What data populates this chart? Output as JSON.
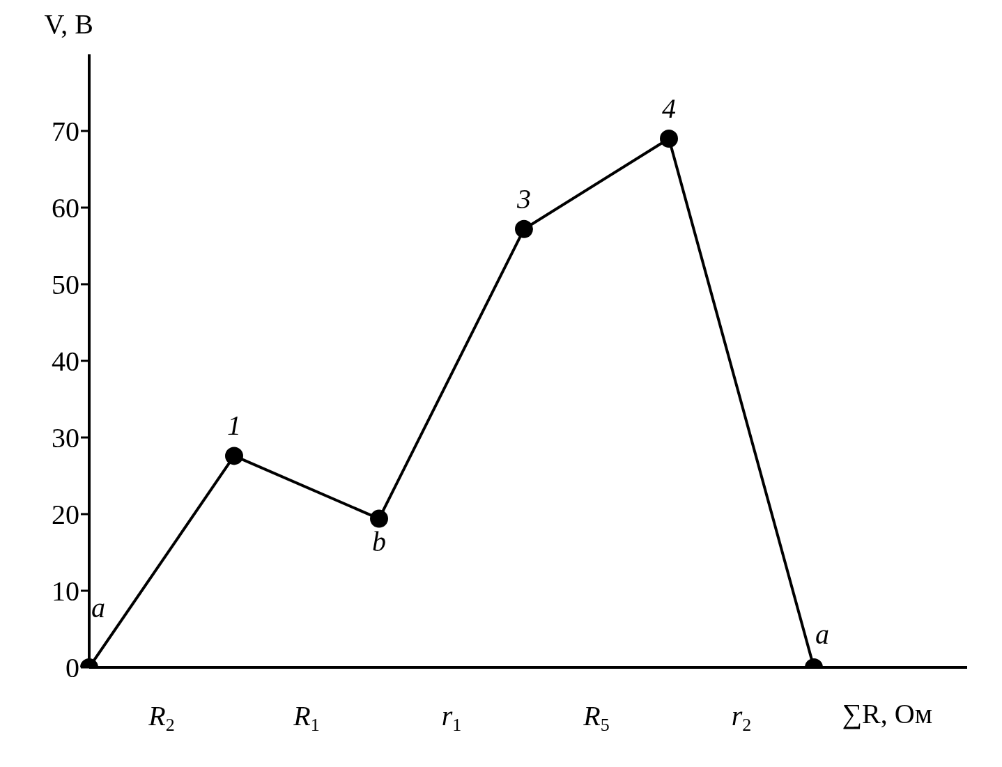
{
  "chart_data": {
    "type": "line",
    "xlabel": "∑R, Ом",
    "ylabel": "V, В",
    "categories": [
      null,
      "R$_{2}$",
      null,
      "R$_{1}$",
      null,
      "r$_{1}$",
      null,
      "R$_{5}$",
      null,
      "r$_{2}$",
      null
    ],
    "series": [
      {
        "color": "#000000",
        "values": [
          0,
          null,
          27.6,
          null,
          19.4,
          null,
          57.2,
          null,
          69.0,
          null,
          0
        ]
      }
    ],
    "ylim": [
      0,
      80
    ],
    "yticks": [
      0,
      10,
      20,
      30,
      40,
      50,
      60,
      70
    ],
    "annotations": [
      {
        "text": "a",
        "y": 0
      },
      {
        "text": "1",
        "y": 27.6
      },
      {
        "text": "b",
        "y": 19.4
      },
      {
        "text": "3",
        "y": 57.2
      },
      {
        "text": "4",
        "y": 69.0
      },
      {
        "text": "a",
        "y": 0
      }
    ],
    "grid": false,
    "legend": false,
    "marker": "circle",
    "line_style": "solid"
  }
}
